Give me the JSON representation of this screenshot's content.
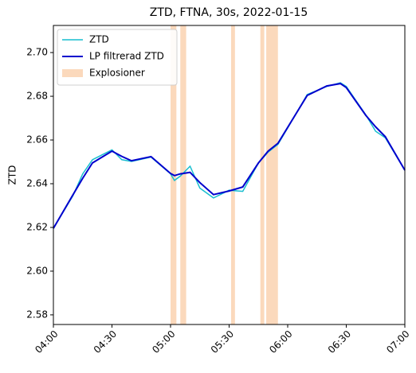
{
  "chart_data": {
    "type": "line",
    "title": "ZTD, FTNA, 30s, 2022-01-15",
    "ylabel": "ZTD",
    "x": [
      "04:00",
      "04:10",
      "04:15",
      "04:20",
      "04:30",
      "04:35",
      "04:40",
      "04:50",
      "05:00",
      "05:02",
      "05:05",
      "05:10",
      "05:15",
      "05:22",
      "05:30",
      "05:37",
      "05:45",
      "05:50",
      "05:55",
      "06:00",
      "06:10",
      "06:20",
      "06:27",
      "06:30",
      "06:40",
      "06:45",
      "06:50",
      "07:00"
    ],
    "series": [
      {
        "name": "ZTD",
        "color": "#17becf",
        "width": 1.5,
        "values": [
          2.6196,
          2.6345,
          2.6445,
          2.651,
          2.6555,
          2.651,
          2.6502,
          2.6522,
          2.6445,
          2.6415,
          2.6435,
          2.648,
          2.638,
          2.6335,
          2.637,
          2.6365,
          2.6495,
          2.6545,
          2.658,
          2.6655,
          2.6808,
          2.6845,
          2.6862,
          2.6845,
          2.6715,
          2.664,
          2.661,
          2.6462
        ]
      },
      {
        "name": "LP filtrerad ZTD",
        "color": "#0000cd",
        "width": 2,
        "values": [
          2.6196,
          2.6349,
          2.6425,
          2.6495,
          2.6549,
          2.6525,
          2.6505,
          2.6524,
          2.6447,
          2.6437,
          2.6445,
          2.6452,
          2.6405,
          2.635,
          2.6367,
          2.6385,
          2.6495,
          2.6549,
          2.6585,
          2.6658,
          2.6804,
          2.6847,
          2.6858,
          2.684,
          2.6713,
          2.666,
          2.6615,
          2.6462
        ]
      }
    ],
    "spans": {
      "name": "Explosioner",
      "color": "#f9c99f",
      "ranges": [
        [
          "05:00",
          "05:03"
        ],
        [
          "05:05",
          "05:08"
        ],
        [
          "05:31",
          "05:33"
        ],
        [
          "05:46",
          "05:48"
        ],
        [
          "05:49",
          "05:55"
        ]
      ]
    },
    "xlim": [
      "04:00",
      "07:00"
    ],
    "xticks": [
      "04:00",
      "04:30",
      "05:00",
      "05:30",
      "06:00",
      "06:30",
      "07:00"
    ],
    "ylim": [
      2.5756,
      2.7124
    ],
    "yticks": [
      {
        "value": 2.58,
        "label": "2.58"
      },
      {
        "value": 2.6,
        "label": "2.60"
      },
      {
        "value": 2.62,
        "label": "2.62"
      },
      {
        "value": 2.64,
        "label": "2.64"
      },
      {
        "value": 2.66,
        "label": "2.66"
      },
      {
        "value": 2.68,
        "label": "2.68"
      },
      {
        "value": 2.7,
        "label": "2.70"
      }
    ],
    "legend": "upper left"
  }
}
